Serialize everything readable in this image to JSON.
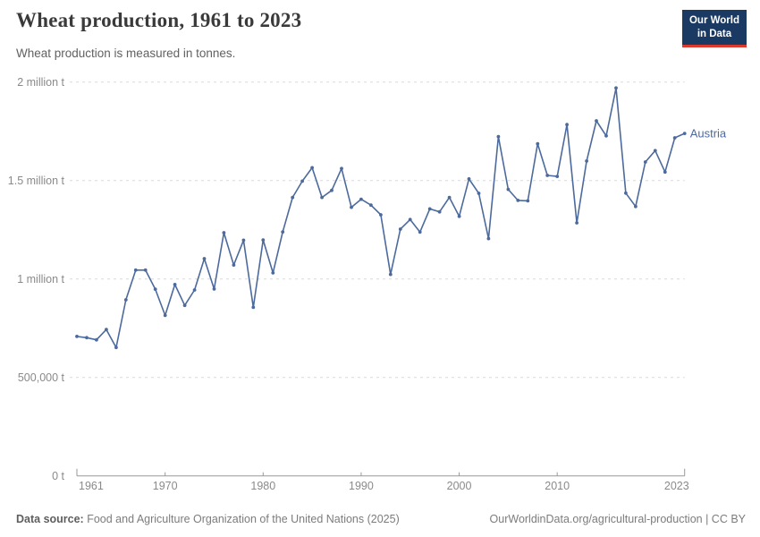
{
  "header": {
    "title": "Wheat production, 1961 to 2023",
    "subtitle": "Wheat production is measured in tonnes.",
    "logo_line1": "Our World",
    "logo_line2": "in Data"
  },
  "footer": {
    "source_label": "Data source:",
    "source_text": "Food and Agriculture Organization of the United Nations (2025)",
    "attribution": "OurWorldinData.org/agricultural-production | CC BY"
  },
  "colors": {
    "line": "#4C6A9C",
    "series_label": "#4C6A9C",
    "gridline": "#d9d9d9",
    "axis_line": "#999999",
    "tick_label": "#8a8a8a",
    "logo_bg": "#1a3a63",
    "logo_red": "#dc3a2e"
  },
  "chart_data": {
    "type": "line",
    "title": "Wheat production, 1961 to 2023",
    "subtitle": "Wheat production is measured in tonnes.",
    "xlabel": "",
    "ylabel": "",
    "xlim": [
      1961,
      2023
    ],
    "ylim": [
      0,
      2000000
    ],
    "grid": "dashed-horizontal",
    "legend_position": "end-of-line",
    "x_ticks": [
      1961,
      1970,
      1980,
      1990,
      2000,
      2010,
      2023
    ],
    "y_ticks": [
      {
        "value": 0,
        "label": "0 t"
      },
      {
        "value": 500000,
        "label": "500,000 t"
      },
      {
        "value": 1000000,
        "label": "1 million t"
      },
      {
        "value": 1500000,
        "label": "1.5 million t"
      },
      {
        "value": 2000000,
        "label": "2 million t"
      }
    ],
    "series": [
      {
        "name": "Austria",
        "color": "#4C6A9C",
        "x": [
          1961,
          1962,
          1963,
          1964,
          1965,
          1966,
          1967,
          1968,
          1969,
          1970,
          1971,
          1972,
          1973,
          1974,
          1975,
          1976,
          1977,
          1978,
          1979,
          1980,
          1981,
          1982,
          1983,
          1984,
          1985,
          1986,
          1987,
          1988,
          1989,
          1990,
          1991,
          1992,
          1993,
          1994,
          1995,
          1996,
          1997,
          1998,
          1999,
          2000,
          2001,
          2002,
          2003,
          2004,
          2005,
          2006,
          2007,
          2008,
          2009,
          2010,
          2011,
          2012,
          2013,
          2014,
          2015,
          2016,
          2017,
          2018,
          2019,
          2020,
          2021,
          2022,
          2023
        ],
        "values": [
          708000,
          702000,
          691000,
          743000,
          652000,
          894000,
          1045000,
          1045000,
          948000,
          815000,
          972000,
          866000,
          944000,
          1103000,
          949000,
          1235000,
          1071000,
          1197000,
          856000,
          1198000,
          1031000,
          1239000,
          1414000,
          1497000,
          1565000,
          1414000,
          1450000,
          1561000,
          1364000,
          1405000,
          1375000,
          1326000,
          1023000,
          1253000,
          1302000,
          1238000,
          1356000,
          1341000,
          1414000,
          1318000,
          1508000,
          1435000,
          1205000,
          1723000,
          1455000,
          1399000,
          1397000,
          1687000,
          1526000,
          1521000,
          1784000,
          1285000,
          1599000,
          1803000,
          1727000,
          1970000,
          1436000,
          1368000,
          1594000,
          1652000,
          1543000,
          1717000,
          1739000
        ]
      }
    ]
  }
}
